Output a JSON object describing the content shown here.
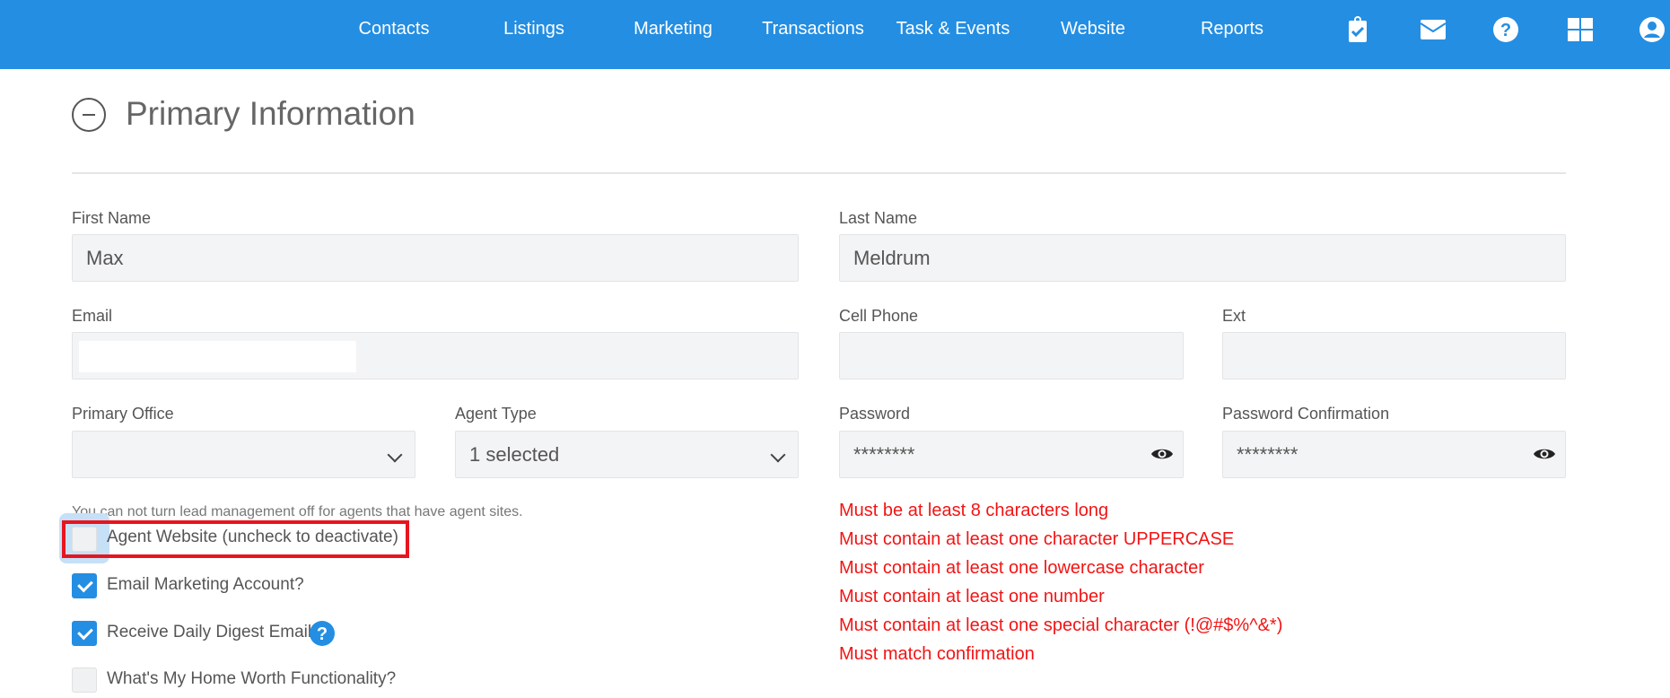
{
  "nav": {
    "items": [
      "Contacts",
      "Listings",
      "Marketing",
      "Transactions",
      "Task & Events",
      "Website",
      "Reports"
    ],
    "icons": [
      "clipboard-check-icon",
      "envelope-icon",
      "question-circle-icon",
      "grid-icon",
      "user-circle-icon"
    ],
    "color": "#248ee2"
  },
  "section": {
    "title": "Primary Information"
  },
  "form": {
    "first_name": {
      "label": "First Name",
      "value": "Max"
    },
    "last_name": {
      "label": "Last Name",
      "value": "Meldrum"
    },
    "email": {
      "label": "Email",
      "value": ""
    },
    "cell_phone": {
      "label": "Cell Phone",
      "value": ""
    },
    "ext": {
      "label": "Ext",
      "value": ""
    },
    "primary_office": {
      "label": "Primary Office",
      "value": ""
    },
    "agent_type": {
      "label": "Agent Type",
      "value": "1 selected"
    },
    "password": {
      "label": "Password",
      "value": "********"
    },
    "password_confirmation": {
      "label": "Password Confirmation",
      "value": "********"
    }
  },
  "note": "You can not turn lead management off for agents that have agent sites.",
  "checkboxes": [
    {
      "label": "Agent Website (uncheck to deactivate)",
      "checked": false
    },
    {
      "label": "Email Marketing Account?",
      "checked": true
    },
    {
      "label": "Receive Daily Digest Email",
      "checked": true
    },
    {
      "label": "What's My Home Worth Functionality?",
      "checked": false
    }
  ],
  "password_rules": [
    "Must be at least 8 characters long",
    "Must contain at least one character UPPERCASE",
    "Must contain at least one lowercase character",
    "Must contain at least one number",
    "Must contain at least one special character (!@#$%^&*)",
    "Must match confirmation"
  ],
  "error_color": "#f21414"
}
